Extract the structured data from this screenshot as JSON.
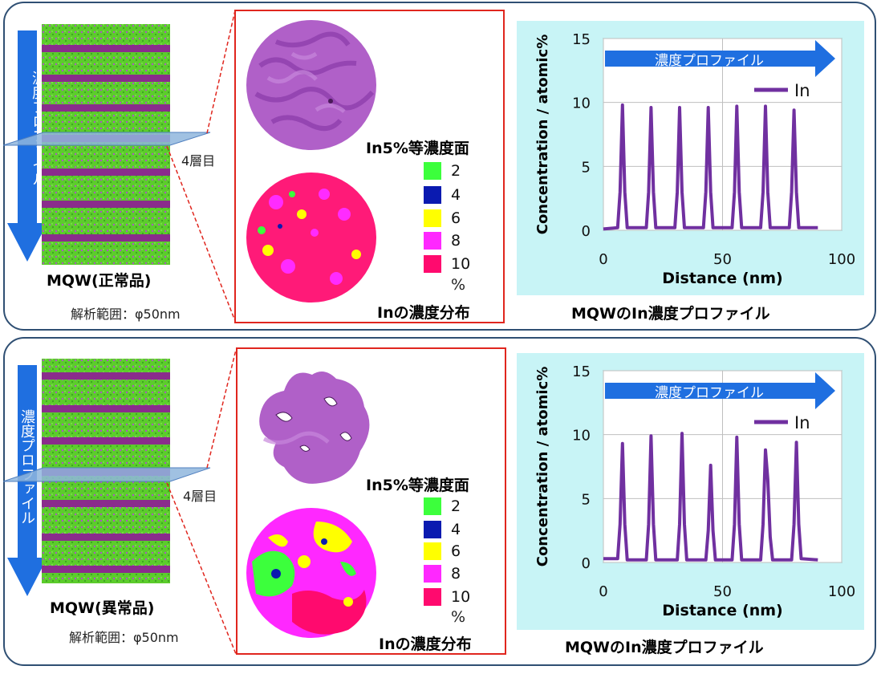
{
  "colors": {
    "panel_border": "#2f4f73",
    "red_frame": "#e0261e",
    "chart_bg": "#c8f4f6",
    "series_in": "#7030a0",
    "arrow_blue": "#1f6fe0"
  },
  "panels": [
    {
      "sample_label": "MQW(正常品)",
      "analysis_range": "解析範囲：φ50nm",
      "vertical_arrow_label": "濃度プロファイル",
      "layer_label": "4層目",
      "iso_surface_label": "In5%等濃度面",
      "distribution_label": "Inの濃度分布",
      "legend": [
        {
          "label": "2",
          "color": "#3cff3c"
        },
        {
          "label": "4",
          "color": "#0a1ab0"
        },
        {
          "label": "6",
          "color": "#ffff00"
        },
        {
          "label": "8",
          "color": "#ff28ff"
        },
        {
          "label": "10",
          "color": "#ff0a6e"
        }
      ],
      "legend_unit": "%",
      "chart_caption": "MQWのIn濃度プロファイル",
      "chart_arrow_label": "濃度プロファイル",
      "chart_data": {
        "type": "line",
        "xlabel": "Distance (nm)",
        "ylabel": "Concentration / atomic%",
        "xlim": [
          0,
          100
        ],
        "ylim": [
          0,
          15
        ],
        "xticks": [
          "0",
          "50",
          "100"
        ],
        "yticks": [
          "0",
          "5",
          "10",
          "15"
        ],
        "grid": true,
        "legend_position": "top-right",
        "series": [
          {
            "name": "In",
            "x": [
              0,
              6,
              7,
              8,
              9,
              10,
              18,
              19,
              20,
              21,
              22,
              30,
              31,
              32,
              33,
              34,
              42,
              43,
              44,
              45,
              46,
              54,
              55,
              56,
              57,
              58,
              66,
              67,
              68,
              69,
              70,
              78,
              79,
              80,
              81,
              82,
              90
            ],
            "y": [
              0.1,
              0.2,
              3,
              9.8,
              3,
              0.2,
              0.2,
              3,
              9.6,
              3,
              0.2,
              0.2,
              3,
              9.6,
              3,
              0.2,
              0.2,
              3,
              9.6,
              3,
              0.2,
              0.2,
              3,
              9.7,
              3,
              0.2,
              0.2,
              3,
              9.7,
              3,
              0.2,
              0.2,
              3,
              9.4,
              3,
              0.2,
              0.2
            ]
          }
        ]
      }
    },
    {
      "sample_label": "MQW(異常品)",
      "analysis_range": "解析範囲：φ50nm",
      "vertical_arrow_label": "濃度プロファイル",
      "layer_label": "4層目",
      "iso_surface_label": "In5%等濃度面",
      "distribution_label": "Inの濃度分布",
      "legend": [
        {
          "label": "2",
          "color": "#3cff3c"
        },
        {
          "label": "4",
          "color": "#0a1ab0"
        },
        {
          "label": "6",
          "color": "#ffff00"
        },
        {
          "label": "8",
          "color": "#ff28ff"
        },
        {
          "label": "10",
          "color": "#ff0a6e"
        }
      ],
      "legend_unit": "%",
      "chart_caption": "MQWのIn濃度プロファイル",
      "chart_arrow_label": "濃度プロファイル",
      "chart_data": {
        "type": "line",
        "xlabel": "Distance (nm)",
        "ylabel": "Concentration / atomic%",
        "xlim": [
          0,
          100
        ],
        "ylim": [
          0,
          15
        ],
        "xticks": [
          "0",
          "50",
          "100"
        ],
        "yticks": [
          "0",
          "5",
          "10",
          "15"
        ],
        "grid": true,
        "legend_position": "top-right",
        "series": [
          {
            "name": "In",
            "x": [
              0,
              6,
              7,
              8,
              9,
              10,
              18,
              19,
              20,
              21,
              22,
              31,
              32,
              33,
              34,
              35,
              43,
              44,
              45,
              46,
              47,
              54,
              55,
              56,
              57,
              58,
              66,
              67,
              68,
              69,
              70,
              71,
              79,
              80,
              81,
              82,
              83,
              90
            ],
            "y": [
              0.3,
              0.3,
              3,
              9.3,
              3,
              0.2,
              0.2,
              3,
              9.9,
              3,
              0.2,
              0.2,
              3,
              10.1,
              3,
              0.2,
              0.2,
              2.5,
              7.6,
              2.5,
              0.2,
              0.2,
              3,
              9.8,
              3,
              0.2,
              0.2,
              3,
              8.8,
              6.5,
              2,
              0.2,
              0.2,
              3,
              9.4,
              3,
              0.3,
              0.2
            ]
          }
        ]
      }
    }
  ]
}
